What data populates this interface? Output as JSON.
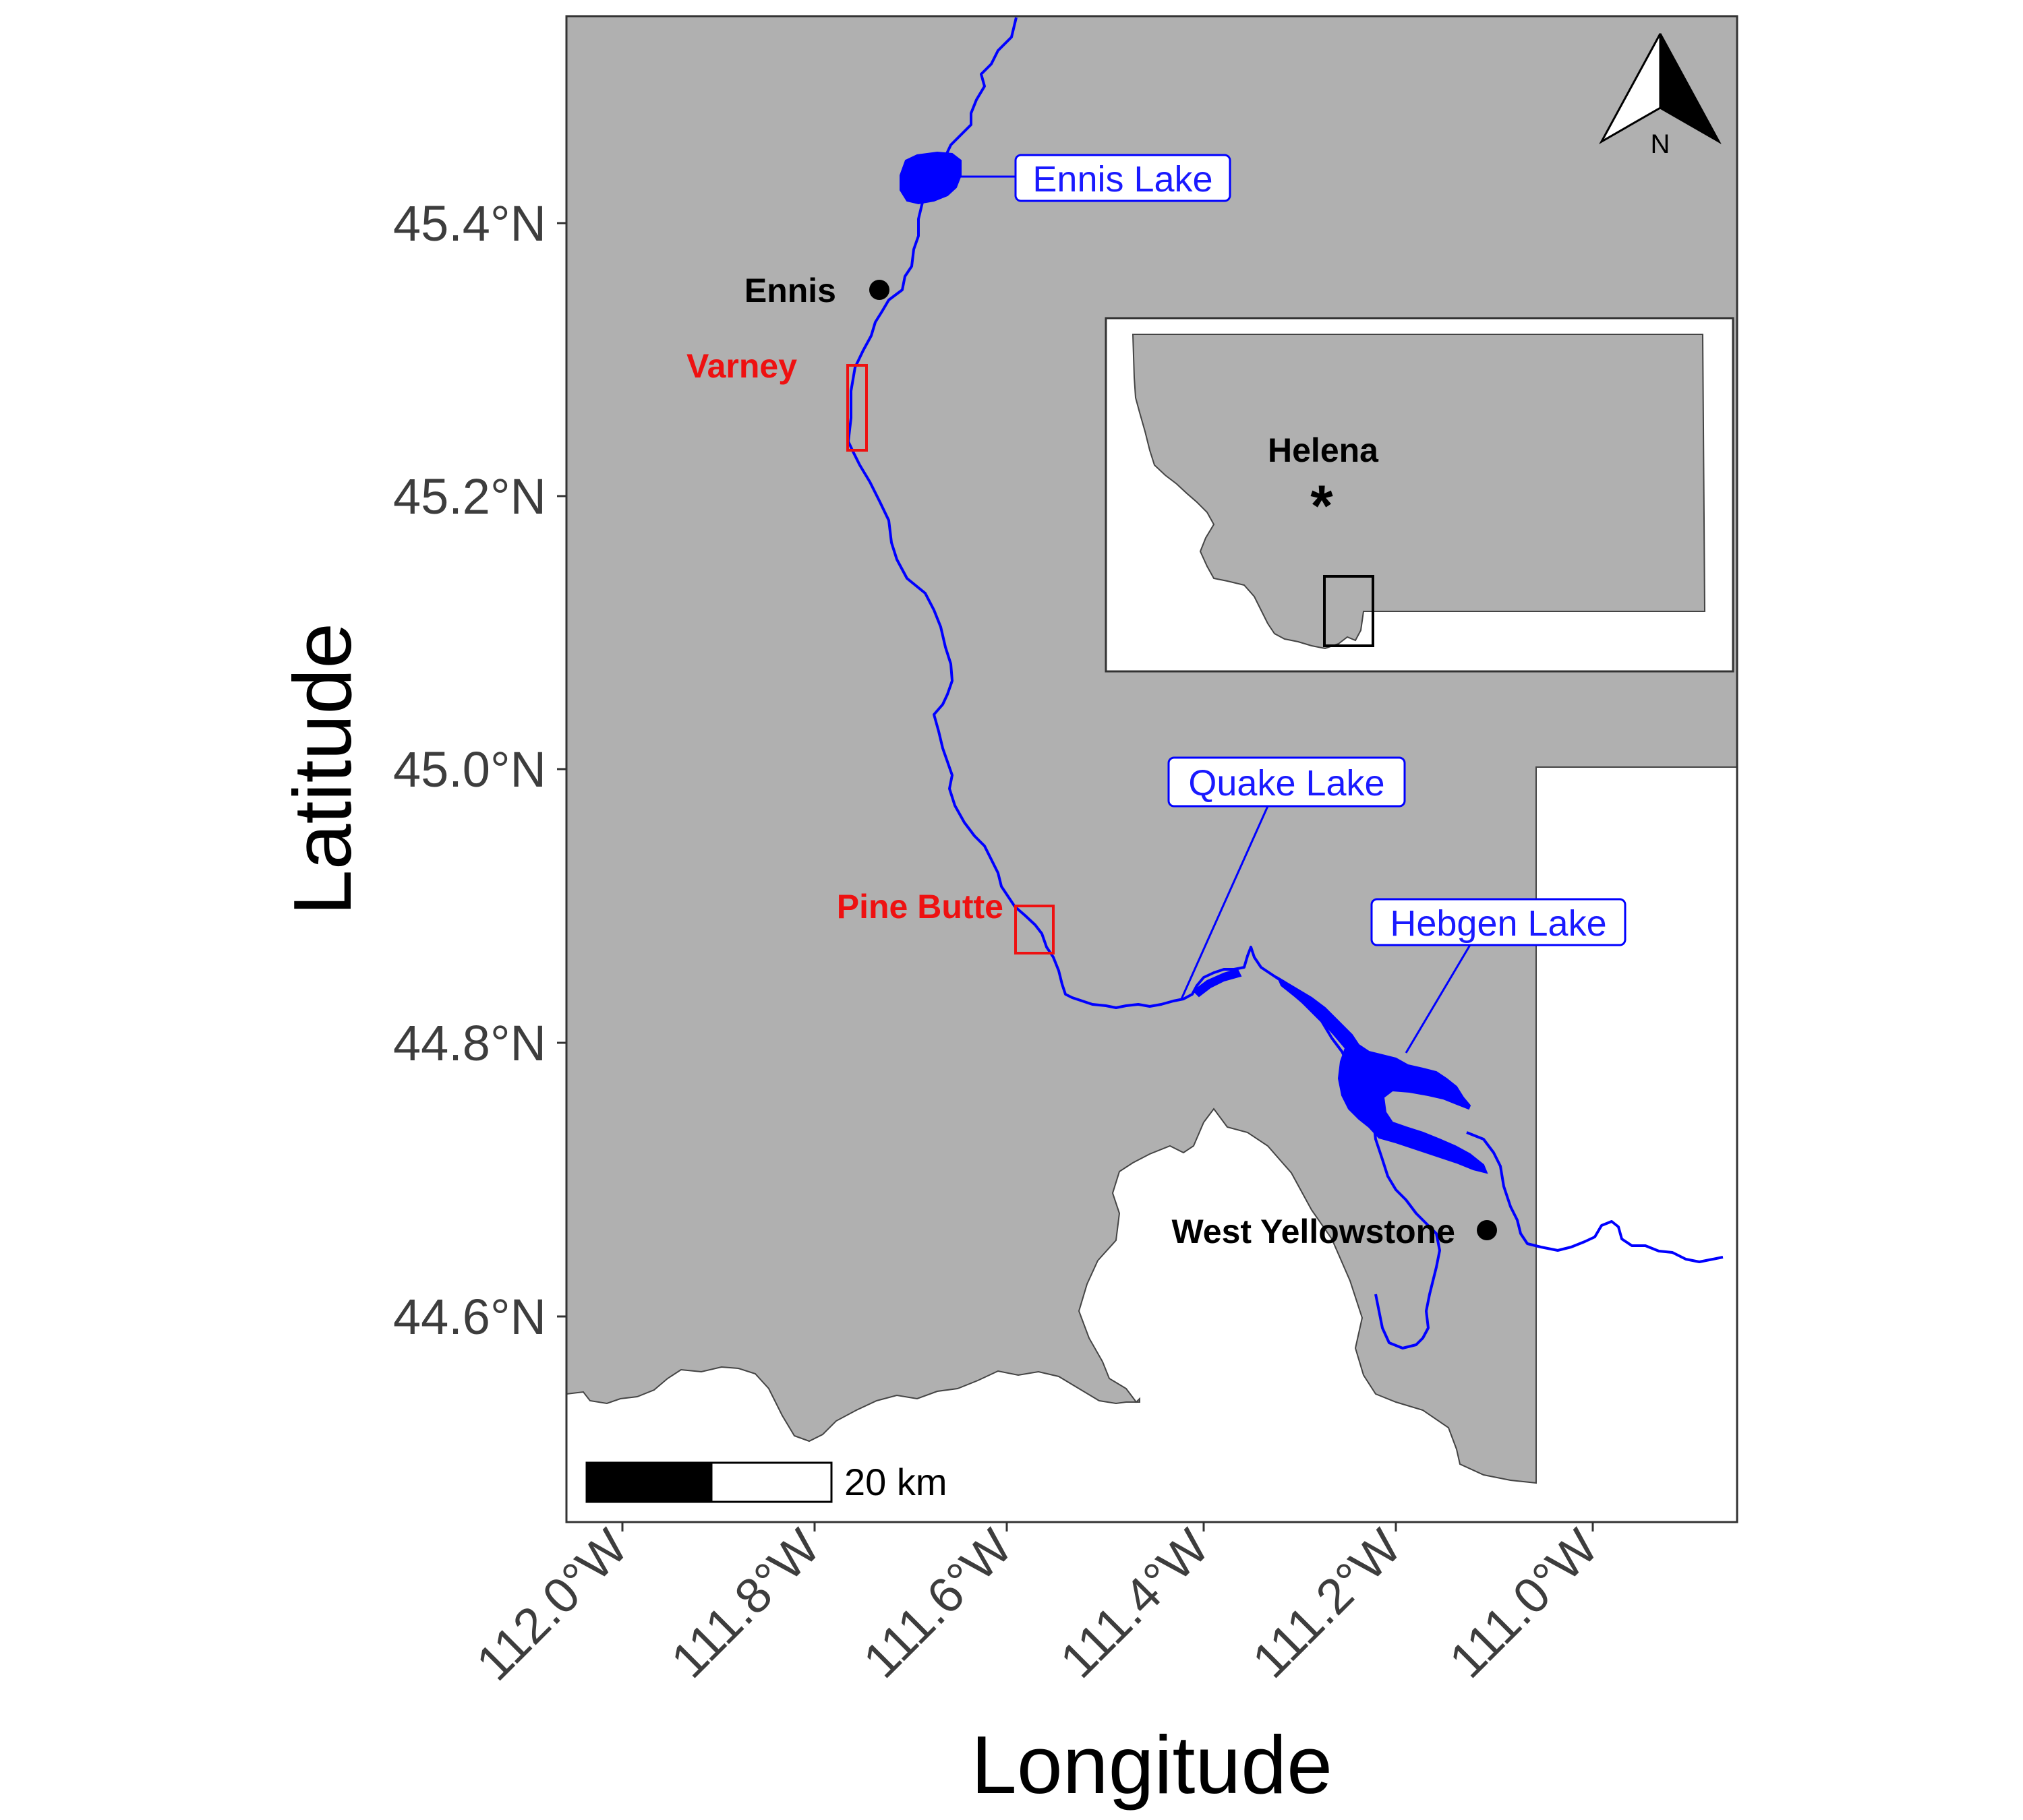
{
  "axes": {
    "x_title": "Longitude",
    "y_title": "Latitude",
    "x_ticks": [
      "112.0°W",
      "111.8°W",
      "111.6°W",
      "111.4°W",
      "111.2°W",
      "111.0°W"
    ],
    "y_ticks": [
      "45.4°N",
      "45.2°N",
      "45.0°N",
      "44.8°N",
      "44.6°N"
    ]
  },
  "places": {
    "ennis": "Ennis",
    "west_yellowstone": "West Yellowstone",
    "helena": "Helena",
    "helena_marker": "*"
  },
  "sites": {
    "varney": "Varney",
    "pine_butte": "Pine Butte"
  },
  "lakes": {
    "ennis_lake": "Ennis Lake",
    "quake_lake": "Quake Lake",
    "hebgen_lake": "Hebgen Lake"
  },
  "scale_bar": {
    "label": "20 km"
  },
  "north_arrow": {
    "label": "N"
  },
  "colors": {
    "land": "#b0b0b0",
    "outside": "#ffffff",
    "river": "#0000ff",
    "site_box": "#ee1111",
    "lake_label": "#1a1aff"
  }
}
